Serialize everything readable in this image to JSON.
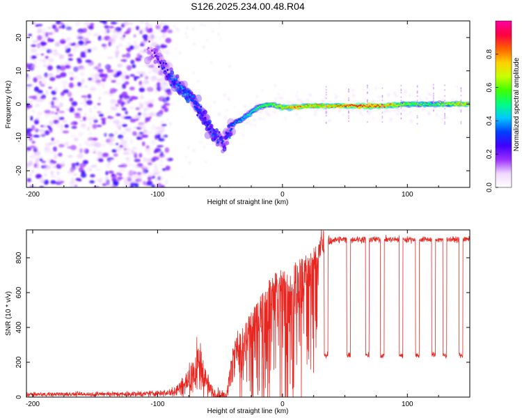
{
  "figure_title": "S126.2025.234.00.48.R04",
  "chart_data": [
    {
      "type": "heatmap",
      "title": "S126.2025.234.00.48.R04",
      "xlabel": "Height of straight line (km)",
      "ylabel": "Frequency (Hz)",
      "xlim": [
        -205,
        150
      ],
      "ylim": [
        -25,
        25
      ],
      "xticks": [
        -200,
        -100,
        0,
        100
      ],
      "yticks": [
        -20,
        -10,
        0,
        10,
        20
      ],
      "colorbar": {
        "label": "Normalized spectral amplitude",
        "range": [
          0,
          1
        ],
        "ticks": [
          "0.0",
          "0.2",
          "0.4",
          "0.6",
          "0.8"
        ],
        "colors": [
          "#ffffff",
          "#f0d8ff",
          "#9b30ff",
          "#4000ff",
          "#0040ff",
          "#00c8ff",
          "#00ff80",
          "#40ff00",
          "#c8ff00",
          "#ffd000",
          "#ff6000",
          "#ff0040",
          "#ff00a0"
        ]
      },
      "ridge": {
        "description": "frequency of dominant tone vs height",
        "x": [
          -105,
          -95,
          -85,
          -75,
          -65,
          -55,
          -47,
          -40,
          -30,
          -20,
          -10,
          0,
          10,
          20,
          40,
          60,
          80,
          100,
          120,
          150
        ],
        "y": [
          16,
          11,
          6,
          3,
          -3,
          -9,
          -12,
          -6,
          -4,
          -1,
          0,
          -1,
          -1,
          -0.5,
          -0.5,
          -0.5,
          -0.5,
          0,
          0,
          0
        ],
        "amplitude": [
          0.15,
          0.25,
          0.35,
          0.35,
          0.3,
          0.3,
          0.25,
          0.35,
          0.45,
          0.55,
          0.6,
          0.7,
          0.85,
          0.75,
          0.8,
          0.9,
          0.85,
          0.6,
          0.55,
          0.8
        ]
      },
      "noise_region_x": [
        -205,
        -105
      ],
      "noise_amplitude": 0.15
    },
    {
      "type": "line",
      "title": "",
      "xlabel": "Height of straight line (km)",
      "ylabel": "SNR (10 * v/v)",
      "xlim": [
        -205,
        150
      ],
      "ylim": [
        0,
        960
      ],
      "xticks": [
        -200,
        -100,
        0,
        100
      ],
      "yticks": [
        0,
        200,
        400,
        600,
        800
      ],
      "color": "#e8251f",
      "envelope": {
        "x": [
          -205,
          -110,
          -90,
          -80,
          -75,
          -70,
          -65,
          -60,
          -55,
          -50,
          -45,
          -40,
          -35,
          -30,
          -25,
          -20,
          -15,
          -10,
          -5,
          0,
          5,
          10,
          15,
          20,
          25,
          30,
          35,
          40,
          45,
          150
        ],
        "y": [
          20,
          25,
          35,
          80,
          130,
          200,
          230,
          80,
          25,
          15,
          10,
          300,
          400,
          430,
          500,
          550,
          620,
          680,
          720,
          740,
          760,
          780,
          800,
          820,
          860,
          880,
          890,
          900,
          905,
          905
        ]
      },
      "dropouts": {
        "x_centers": [
          35,
          53,
          68,
          80,
          95,
          108,
          121,
          130,
          143
        ],
        "level": 240,
        "width_km": 3
      },
      "noise_spread": {
        "x": [
          -205,
          -110,
          -90,
          -70,
          -55,
          -45,
          -30,
          -10,
          10,
          30,
          40,
          150
        ],
        "y": [
          10,
          15,
          25,
          150,
          80,
          20,
          250,
          250,
          300,
          100,
          20,
          15
        ]
      }
    }
  ]
}
